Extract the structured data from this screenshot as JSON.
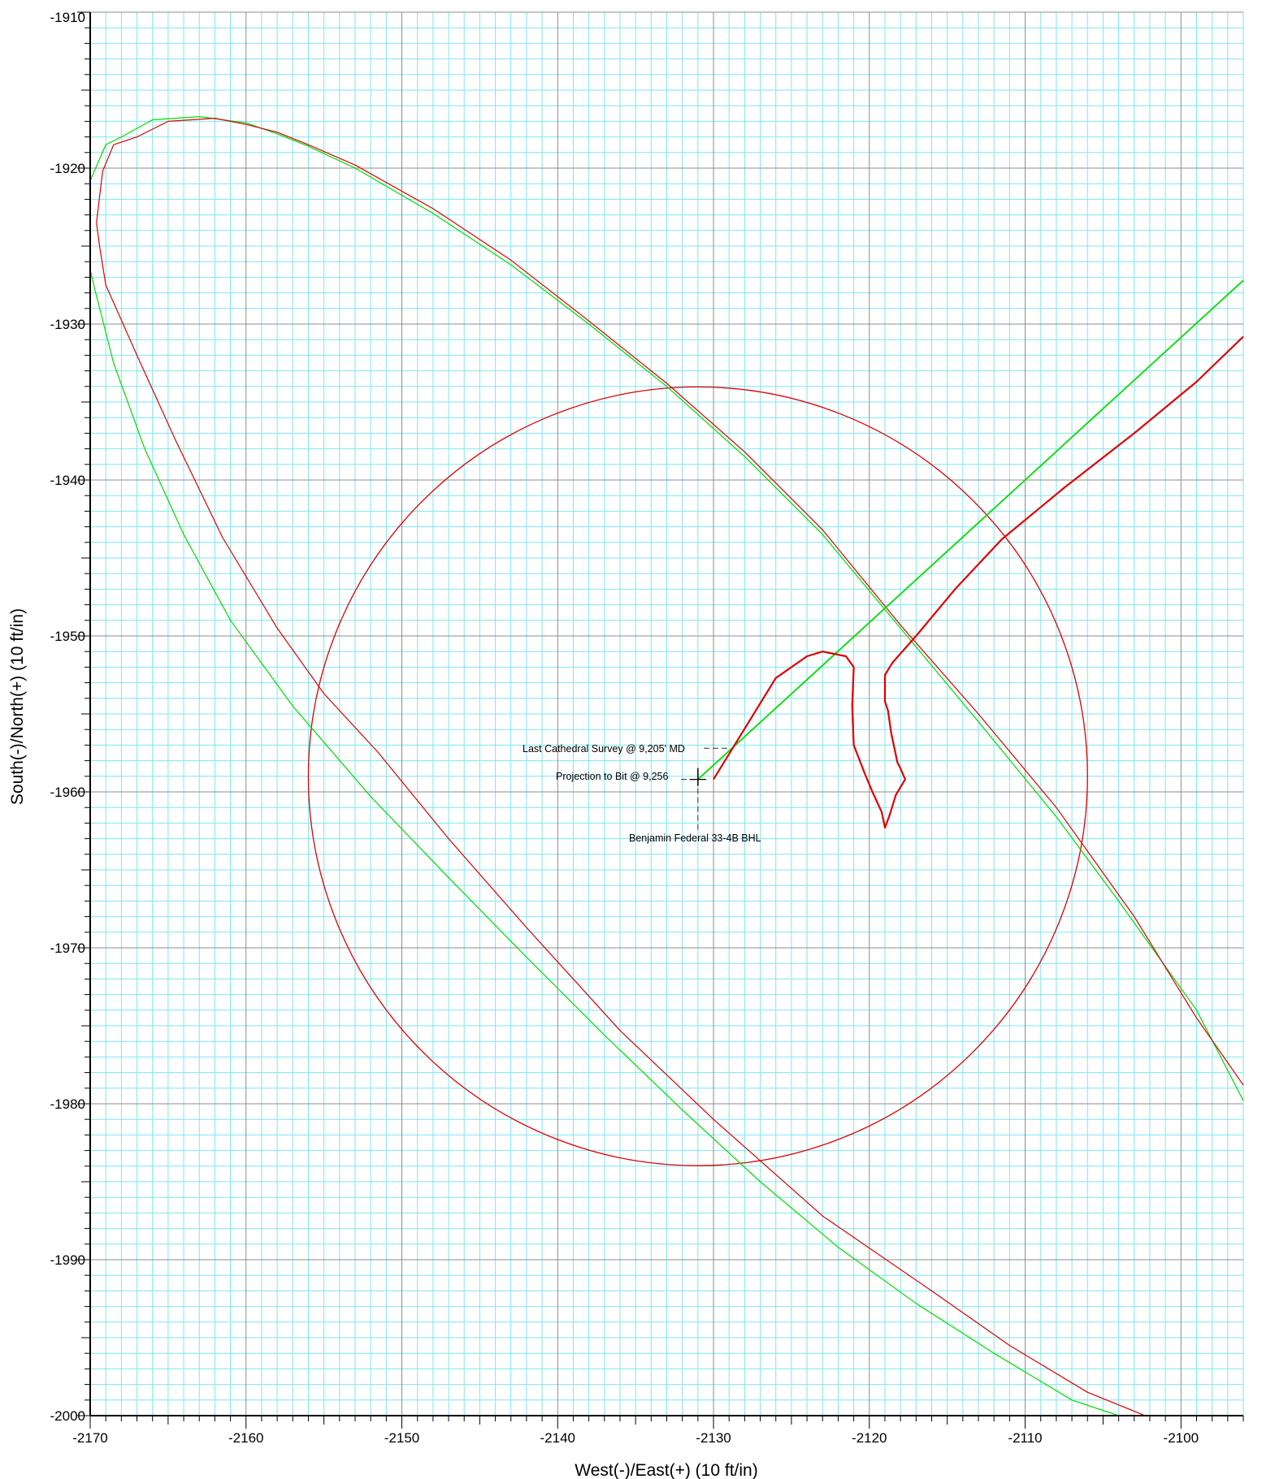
{
  "chart_data": {
    "type": "line",
    "title": "",
    "xlabel": "West(-)/East(+) (10 ft/in)",
    "ylabel": "South(-)/North(+) (10 ft/in)",
    "xlim": [
      -2170,
      -2096
    ],
    "ylim": [
      -2000,
      -1910
    ],
    "x_ticks": [
      -2170,
      -2160,
      -2150,
      -2140,
      -2130,
      -2120,
      -2110,
      -2100
    ],
    "y_ticks": [
      -1910,
      -1920,
      -1930,
      -1940,
      -1950,
      -1960,
      -1970,
      -1980,
      -1990,
      -2000
    ],
    "grid": true,
    "grid_minor_color": "#7fe6f2",
    "grid_major_color": "#8c8c8c",
    "colors": {
      "red": "#e00000",
      "green": "#00dd00",
      "dash": "#333333"
    },
    "series": [
      {
        "color": "#00dd00",
        "width": 1.2,
        "points": [
          [
            -2170,
            -1920.8
          ],
          [
            -2169,
            -1918.5
          ],
          [
            -2168,
            -1918
          ],
          [
            -2166,
            -1916.9
          ],
          [
            -2163,
            -1916.7
          ],
          [
            -2160,
            -1917.1
          ],
          [
            -2158,
            -1917.8
          ],
          [
            -2156,
            -1918.6
          ],
          [
            -2153,
            -1920
          ],
          [
            -2148,
            -1922.9
          ],
          [
            -2143,
            -1926.2
          ],
          [
            -2138,
            -1930
          ],
          [
            -2133,
            -1934
          ],
          [
            -2128,
            -1938.5
          ],
          [
            -2123,
            -1943.5
          ],
          [
            -2118,
            -1949.5
          ],
          [
            -2113,
            -1955.5
          ],
          [
            -2108,
            -1961.6
          ],
          [
            -2104,
            -1967
          ],
          [
            -2099,
            -1974
          ],
          [
            -2096,
            -1979.8
          ]
        ]
      },
      {
        "color": "#e00000",
        "width": 1.2,
        "points": [
          [
            -2169.6,
            -1923.5
          ],
          [
            -2169.2,
            -1920.2
          ],
          [
            -2168.5,
            -1918.5
          ],
          [
            -2167,
            -1918
          ],
          [
            -2165,
            -1917
          ],
          [
            -2162,
            -1916.8
          ],
          [
            -2160,
            -1917.2
          ],
          [
            -2158,
            -1917.7
          ],
          [
            -2156,
            -1918.5
          ],
          [
            -2153,
            -1919.8
          ],
          [
            -2148,
            -1922.6
          ],
          [
            -2143,
            -1925.9
          ],
          [
            -2138,
            -1929.8
          ],
          [
            -2133,
            -1933.8
          ],
          [
            -2128,
            -1938.2
          ],
          [
            -2123,
            -1943.2
          ],
          [
            -2118,
            -1949.3
          ],
          [
            -2113,
            -1955
          ],
          [
            -2108,
            -1961
          ],
          [
            -2103,
            -1968
          ],
          [
            -2099,
            -1974.5
          ],
          [
            -2096,
            -1978.8
          ]
        ]
      },
      {
        "color": "#00dd00",
        "width": 1.2,
        "points": [
          [
            -2170,
            -1926.5
          ],
          [
            -2169.7,
            -1927.8
          ],
          [
            -2168.5,
            -1932.5
          ],
          [
            -2166.5,
            -1938
          ],
          [
            -2164,
            -1943.5
          ],
          [
            -2161,
            -1949
          ],
          [
            -2157,
            -1954.5
          ],
          [
            -2152,
            -1960.3
          ],
          [
            -2147,
            -1965.5
          ],
          [
            -2142,
            -1970.6
          ],
          [
            -2137,
            -1975.6
          ],
          [
            -2132,
            -1980.4
          ],
          [
            -2127,
            -1985
          ],
          [
            -2122,
            -1989.2
          ],
          [
            -2117,
            -1992.8
          ],
          [
            -2112,
            -1996
          ],
          [
            -2107,
            -1999
          ],
          [
            -2104,
            -2000
          ]
        ]
      },
      {
        "color": "#e00000",
        "width": 1.2,
        "points": [
          [
            -2169.6,
            -1923.5
          ],
          [
            -2169.4,
            -1925
          ],
          [
            -2169,
            -1927.5
          ],
          [
            -2167,
            -1932
          ],
          [
            -2164.5,
            -1937.5
          ],
          [
            -2161.5,
            -1943.7
          ],
          [
            -2158,
            -1949.5
          ],
          [
            -2155,
            -1953.7
          ],
          [
            -2151.5,
            -1957.5
          ],
          [
            -2147,
            -1963
          ],
          [
            -2142,
            -1968.7
          ],
          [
            -2136,
            -1975.3
          ],
          [
            -2130,
            -1981
          ],
          [
            -2123,
            -1987.2
          ],
          [
            -2116,
            -1992
          ],
          [
            -2111,
            -1995.5
          ],
          [
            -2106,
            -1998.5
          ],
          [
            -2102.3,
            -2000
          ]
        ]
      },
      {
        "color": "#00dd00",
        "width": 1.8,
        "points": [
          [
            -2131,
            -1959.2
          ],
          [
            -2096,
            -1927.2
          ]
        ]
      },
      {
        "color": "#e00000",
        "width": 2.2,
        "points": [
          [
            -2130,
            -1959.2
          ],
          [
            -2126,
            -1952.7
          ],
          [
            -2124,
            -1951.3
          ],
          [
            -2123,
            -1951
          ],
          [
            -2121.5,
            -1951.3
          ],
          [
            -2121,
            -1952
          ],
          [
            -2121.1,
            -1954.5
          ],
          [
            -2121,
            -1957
          ],
          [
            -2120.3,
            -1958.8
          ],
          [
            -2119.8,
            -1960
          ],
          [
            -2119.2,
            -1961.3
          ],
          [
            -2119,
            -1962.3
          ],
          [
            -2118.7,
            -1961.5
          ],
          [
            -2118.3,
            -1960.2
          ],
          [
            -2117.7,
            -1959.2
          ],
          [
            -2118,
            -1958.5
          ],
          [
            -2118.2,
            -1958.1
          ],
          [
            -2118.6,
            -1956.2
          ],
          [
            -2118.8,
            -1954.8
          ],
          [
            -2119,
            -1954.2
          ],
          [
            -2119,
            -1952.5
          ],
          [
            -2118.5,
            -1951.7
          ],
          [
            -2117,
            -1950
          ],
          [
            -2116,
            -1948.8
          ],
          [
            -2114.5,
            -1947
          ],
          [
            -2111.5,
            -1943.8
          ],
          [
            -2107.5,
            -1940.5
          ],
          [
            -2103,
            -1937
          ],
          [
            -2099,
            -1933.7
          ],
          [
            -2096,
            -1930.8
          ]
        ]
      }
    ],
    "circle": {
      "center": [
        -2131,
        -1959
      ],
      "radius": 25,
      "color": "#e00000"
    },
    "annotations": [
      {
        "text": "Last Cathedral Survey @ 9,205' MD",
        "anchor": [
          -2130,
          -1957.2
        ]
      },
      {
        "text": "Projection to Bit @ 9,256",
        "anchor": [
          -2131,
          -1959.2
        ]
      },
      {
        "text": "Benjamin Federal 33-4B BHL",
        "anchor": [
          -2131,
          -1962.7
        ]
      }
    ]
  }
}
